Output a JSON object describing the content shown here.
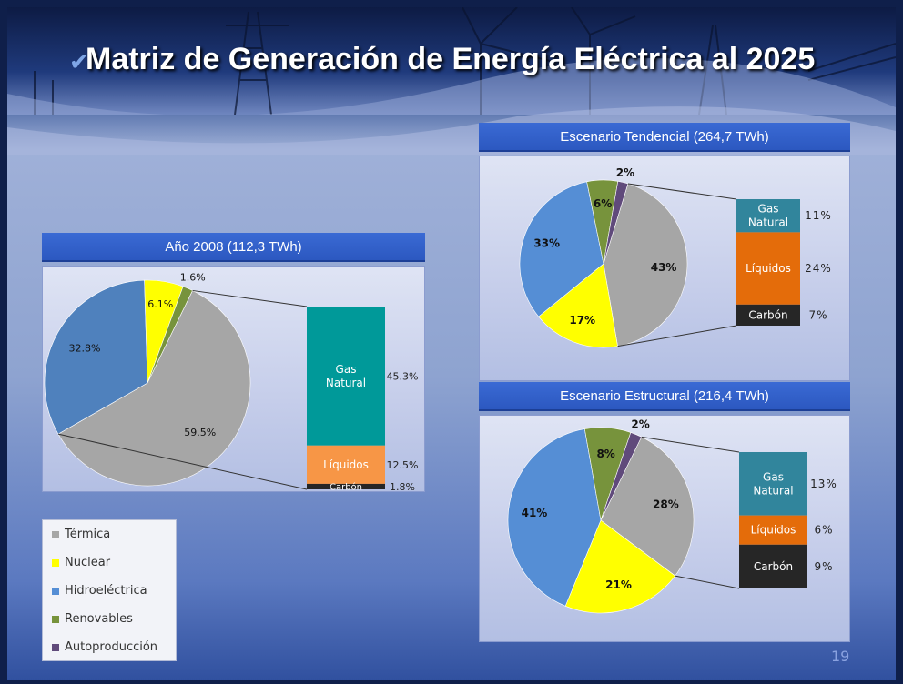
{
  "title": "Matriz de Generación de Energía Eléctrica al 2025",
  "page_number": "19",
  "legend": [
    {
      "label": "Térmica",
      "color": "#a6a6a6"
    },
    {
      "label": "Nuclear",
      "color": "#ffff00"
    },
    {
      "label": "Hidroeléctrica",
      "color": "#558ed5"
    },
    {
      "label": "Renovables",
      "color": "#77933c"
    },
    {
      "label": "Autoproducción",
      "color": "#604a7b"
    }
  ],
  "chart_data": [
    {
      "id": "c2008",
      "type": "pie",
      "title": "Año 2008  (112,3 TWh)",
      "slices": [
        {
          "name": "Térmica",
          "value": 59.5,
          "label": "59.5%",
          "color": "#a6a6a6"
        },
        {
          "name": "Hidroeléctrica",
          "value": 32.8,
          "label": "32.8%",
          "color": "#4f81bd"
        },
        {
          "name": "Nuclear",
          "value": 6.1,
          "label": "6.1%",
          "color": "#ffff00"
        },
        {
          "name": "Renovables",
          "value": 1.6,
          "label": "1.6%",
          "color": "#77933c"
        }
      ],
      "breakdown": [
        {
          "name": "Gas Natural",
          "lines": [
            "Gas",
            "Natural"
          ],
          "value": 45.3,
          "label": "45.3%",
          "color": "#009999"
        },
        {
          "name": "Líquidos",
          "lines": [
            "Líquidos"
          ],
          "value": 12.5,
          "label": "12.5%",
          "color": "#f79646"
        },
        {
          "name": "Carbón",
          "lines": [
            "Carbón"
          ],
          "value": 1.8,
          "label": "1.8%",
          "color": "#262626"
        }
      ]
    },
    {
      "id": "ctend",
      "type": "pie",
      "title": "Escenario Tendencial  (264,7 TWh)",
      "slices": [
        {
          "name": "Térmica",
          "value": 43,
          "label": "43%",
          "color": "#a6a6a6"
        },
        {
          "name": "Nuclear",
          "value": 17,
          "label": "17%",
          "color": "#ffff00"
        },
        {
          "name": "Hidroeléctrica",
          "value": 33,
          "label": "33%",
          "color": "#558ed5"
        },
        {
          "name": "Renovables",
          "value": 6,
          "label": "6%",
          "color": "#77933c"
        },
        {
          "name": "Autoproducción",
          "value": 2,
          "label": "2%",
          "color": "#604a7b"
        }
      ],
      "breakdown": [
        {
          "name": "Gas Natural",
          "lines": [
            "Gas",
            "Natural"
          ],
          "value": 11,
          "label": "11%",
          "color": "#31859c"
        },
        {
          "name": "Líquidos",
          "lines": [
            "Líquidos"
          ],
          "value": 24,
          "label": "24%",
          "color": "#e46c0a"
        },
        {
          "name": "Carbón",
          "lines": [
            "Carbón"
          ],
          "value": 7,
          "label": "7%",
          "color": "#262626"
        }
      ]
    },
    {
      "id": "cestr",
      "type": "pie",
      "title": "Escenario Estructural  (216,4 TWh)",
      "slices": [
        {
          "name": "Térmica",
          "value": 28,
          "label": "28%",
          "color": "#a6a6a6"
        },
        {
          "name": "Nuclear",
          "value": 21,
          "label": "21%",
          "color": "#ffff00"
        },
        {
          "name": "Hidroeléctrica",
          "value": 41,
          "label": "41%",
          "color": "#558ed5"
        },
        {
          "name": "Renovables",
          "value": 8,
          "label": "8%",
          "color": "#77933c"
        },
        {
          "name": "Autoproducción",
          "value": 2,
          "label": "2%",
          "color": "#604a7b"
        }
      ],
      "breakdown": [
        {
          "name": "Gas Natural",
          "lines": [
            "Gas",
            "Natural"
          ],
          "value": 13,
          "label": "13%",
          "color": "#31859c"
        },
        {
          "name": "Líquidos",
          "lines": [
            "Líquidos"
          ],
          "value": 6,
          "label": "6%",
          "color": "#e46c0a"
        },
        {
          "name": "Carbón",
          "lines": [
            "Carbón"
          ],
          "value": 9,
          "label": "9%",
          "color": "#262626"
        }
      ]
    }
  ]
}
